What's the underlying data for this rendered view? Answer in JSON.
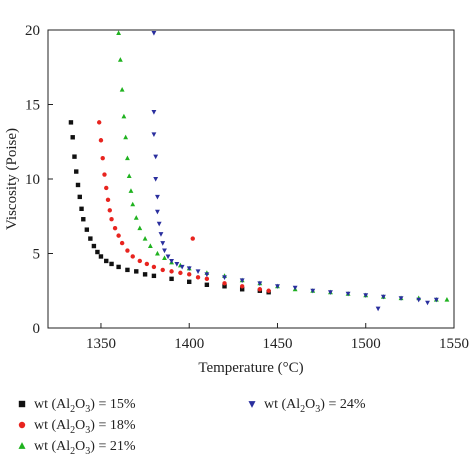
{
  "chart_data": {
    "type": "scatter",
    "title": "",
    "xlabel": "Temperature (°C)",
    "ylabel": "Viscosity (Poise)",
    "xlim": [
      1320,
      1550
    ],
    "ylim": [
      0,
      20
    ],
    "xticks": [
      1350,
      1400,
      1450,
      1500,
      1550
    ],
    "yticks": [
      0,
      5,
      10,
      15,
      20
    ],
    "grid": false,
    "legend": "bottom",
    "series": [
      {
        "name": "wt (Al2O3) = 15%",
        "legend_text": "wt (Al",
        "legend_sub": "2",
        "legend_mid": "O",
        "legend_sub2": "3",
        "legend_tail": ") = 15%",
        "color": "#111111",
        "marker": "square",
        "x": [
          1333,
          1334,
          1335,
          1336,
          1337,
          1338,
          1339,
          1340,
          1342,
          1344,
          1346,
          1348,
          1350,
          1353,
          1356,
          1360,
          1365,
          1370,
          1375,
          1380,
          1390,
          1400,
          1410,
          1420,
          1430,
          1440,
          1445
        ],
        "y": [
          13.8,
          12.8,
          11.5,
          10.5,
          9.6,
          8.8,
          8.0,
          7.3,
          6.6,
          6.0,
          5.5,
          5.1,
          4.8,
          4.5,
          4.3,
          4.1,
          3.9,
          3.8,
          3.6,
          3.5,
          3.3,
          3.1,
          2.9,
          2.8,
          2.6,
          2.5,
          2.4
        ]
      },
      {
        "name": "wt (Al2O3) = 18%",
        "legend_text": "wt (Al",
        "legend_sub": "2",
        "legend_mid": "O",
        "legend_sub2": "3",
        "legend_tail": ") = 18%",
        "color": "#e8241f",
        "marker": "circle",
        "x": [
          1349,
          1350,
          1351,
          1352,
          1353,
          1354,
          1355,
          1356,
          1358,
          1360,
          1362,
          1365,
          1368,
          1372,
          1376,
          1380,
          1385,
          1390,
          1395,
          1400,
          1402,
          1405,
          1410,
          1420,
          1430,
          1440,
          1445
        ],
        "y": [
          13.8,
          12.6,
          11.4,
          10.3,
          9.4,
          8.6,
          7.9,
          7.3,
          6.7,
          6.2,
          5.7,
          5.2,
          4.8,
          4.5,
          4.3,
          4.1,
          3.9,
          3.8,
          3.7,
          3.6,
          6.0,
          3.4,
          3.3,
          3.0,
          2.8,
          2.6,
          2.5
        ]
      },
      {
        "name": "wt (Al2O3) = 21%",
        "legend_text": "wt (Al",
        "legend_sub": "2",
        "legend_mid": "O",
        "legend_sub2": "3",
        "legend_tail": ") = 21%",
        "color": "#1fb21f",
        "marker": "triangle-up",
        "x": [
          1360,
          1361,
          1362,
          1363,
          1364,
          1365,
          1366,
          1367,
          1368,
          1370,
          1372,
          1375,
          1378,
          1382,
          1386,
          1390,
          1395,
          1400,
          1410,
          1420,
          1430,
          1440,
          1450,
          1460,
          1470,
          1480,
          1490,
          1500,
          1510,
          1520,
          1530,
          1540,
          1546
        ],
        "y": [
          19.8,
          18.0,
          16.0,
          14.2,
          12.8,
          11.4,
          10.2,
          9.2,
          8.3,
          7.4,
          6.7,
          6.0,
          5.5,
          5.0,
          4.7,
          4.4,
          4.2,
          4.0,
          3.7,
          3.5,
          3.2,
          3.0,
          2.8,
          2.6,
          2.5,
          2.4,
          2.3,
          2.2,
          2.1,
          2.0,
          2.0,
          1.9,
          1.9
        ]
      },
      {
        "name": "wt (Al2O3) = 24%",
        "legend_text": "wt (Al",
        "legend_sub": "2",
        "legend_mid": "O",
        "legend_sub2": "3",
        "legend_tail": ") = 24%",
        "color": "#2a2f9e",
        "marker": "triangle-down",
        "x": [
          1380,
          1380,
          1380,
          1381,
          1381,
          1382,
          1382,
          1383,
          1384,
          1385,
          1386,
          1388,
          1390,
          1393,
          1396,
          1400,
          1405,
          1410,
          1420,
          1430,
          1440,
          1450,
          1460,
          1470,
          1480,
          1490,
          1500,
          1507,
          1510,
          1520,
          1530,
          1535,
          1540
        ],
        "y": [
          19.8,
          14.5,
          13.0,
          11.5,
          10.0,
          8.8,
          7.8,
          7.0,
          6.3,
          5.7,
          5.2,
          4.8,
          4.5,
          4.3,
          4.1,
          4.0,
          3.8,
          3.6,
          3.4,
          3.2,
          3.0,
          2.8,
          2.7,
          2.5,
          2.4,
          2.3,
          2.2,
          1.3,
          2.1,
          2.0,
          1.9,
          1.7,
          1.9
        ]
      }
    ]
  }
}
